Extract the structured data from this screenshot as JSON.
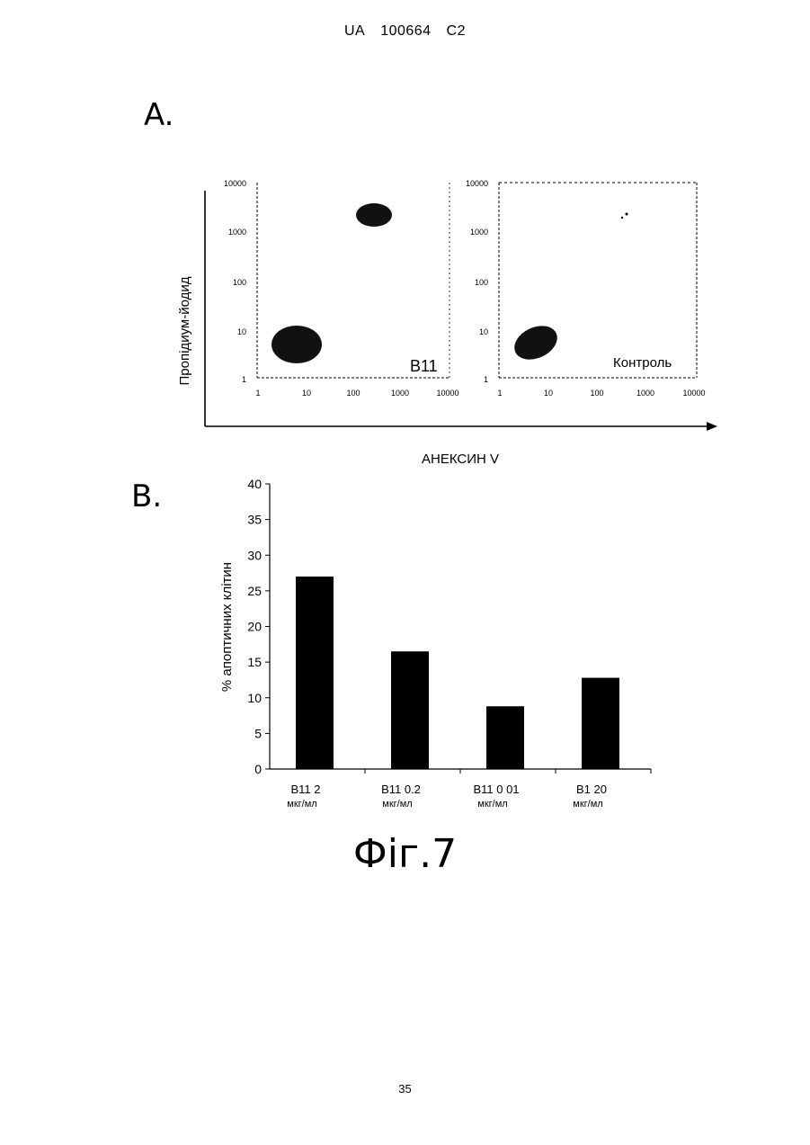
{
  "header": {
    "country": "UA",
    "number": "100664",
    "kind": "C2"
  },
  "panel_a": {
    "label": "A.",
    "y_axis_title": "Пропідиум-йодид",
    "x_axis_title": "АНЕКСИН  V",
    "plots": [
      {
        "name": "B11",
        "x_ticks": [
          "1",
          "10",
          "100",
          "1000",
          "10000"
        ],
        "y_ticks": [
          "1",
          "10",
          "100",
          "1000",
          "10000"
        ]
      },
      {
        "name": "Контроль",
        "x_ticks": [
          "1",
          "10",
          "100",
          "1000",
          "10000"
        ],
        "y_ticks": [
          "1",
          "10",
          "100",
          "1000",
          "10000"
        ]
      }
    ]
  },
  "panel_b": {
    "label": "B."
  },
  "chart_data": {
    "type": "bar",
    "ylabel": "% апоптичних клітин",
    "ylim": [
      0,
      40
    ],
    "yticks": [
      0,
      5,
      10,
      15,
      20,
      25,
      30,
      35,
      40
    ],
    "categories": [
      {
        "line1": "B11 2",
        "line2": "мкг/мл"
      },
      {
        "line1": "B11 0.2",
        "line2": "мкг/мл"
      },
      {
        "line1": "B11 0 01",
        "line2": "мкг/мл"
      },
      {
        "line1": "B1 20",
        "line2": "мкг/мл"
      }
    ],
    "values": [
      27,
      16.5,
      8.8,
      12.8
    ],
    "bar_color": "#000000"
  },
  "figure_caption": "Фіг.7",
  "page_number": "35"
}
